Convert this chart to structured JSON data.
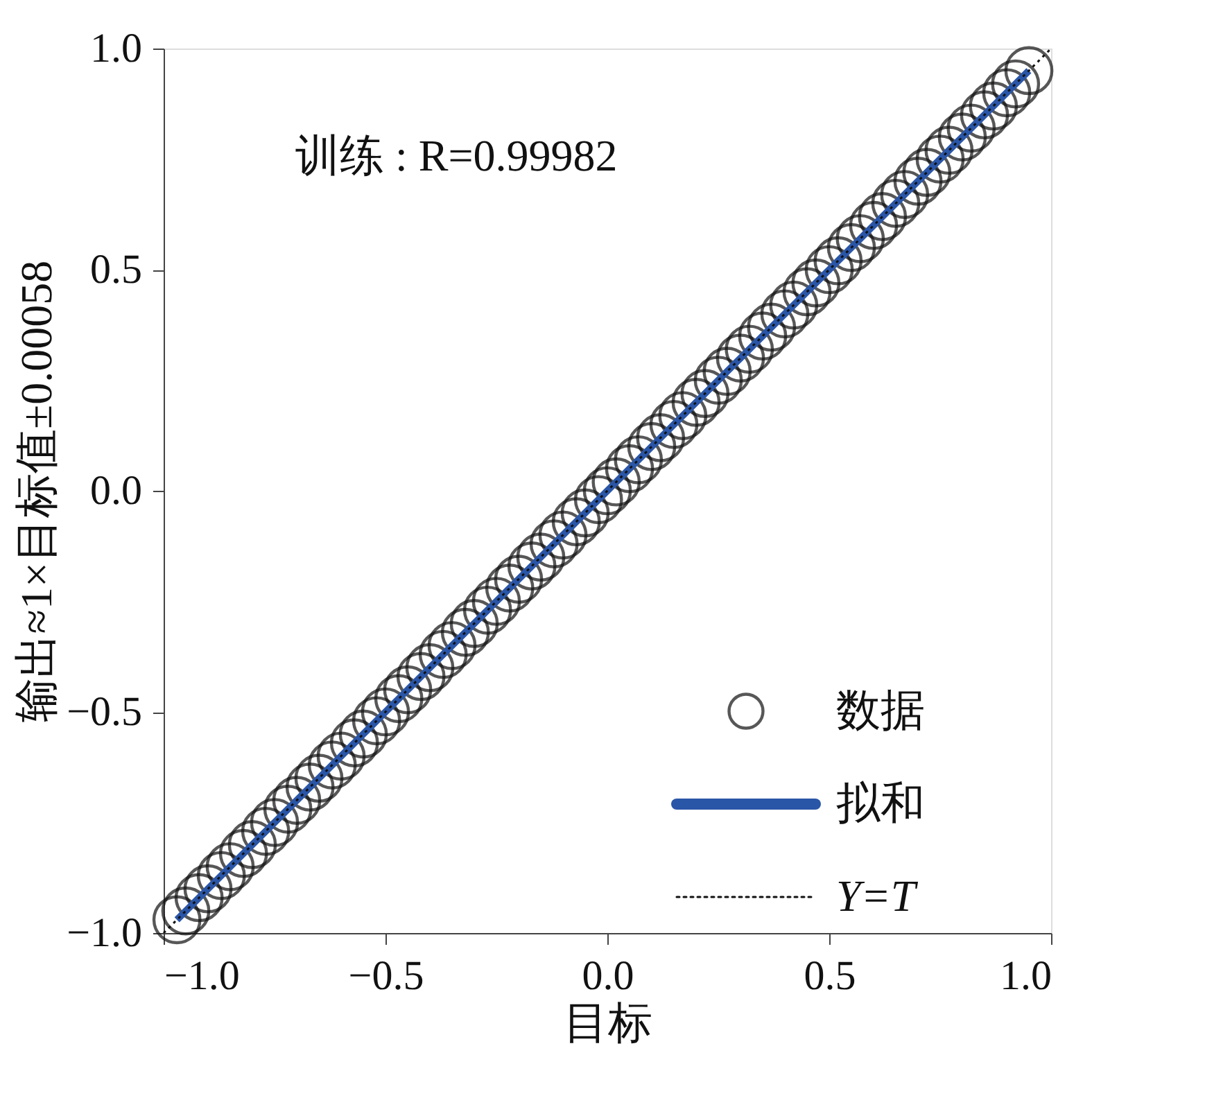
{
  "chart_data": {
    "type": "scatter",
    "xlabel": "目标",
    "ylabel": "输出≈1×目标值±0.00058",
    "annotations": [
      "训练 : R=0.99982"
    ],
    "xlim": [
      -1,
      1
    ],
    "ylim": [
      -1,
      1
    ],
    "xticks": [
      {
        "value": -1,
        "label": "−1.0"
      },
      {
        "value": -0.5,
        "label": "−0.5"
      },
      {
        "value": 0,
        "label": "0.0"
      },
      {
        "value": 0.5,
        "label": "0.5"
      },
      {
        "value": 1,
        "label": "1.0"
      }
    ],
    "yticks": [
      {
        "value": -1,
        "label": "−1.0"
      },
      {
        "value": -0.5,
        "label": "−0.5"
      },
      {
        "value": 0,
        "label": "0.0"
      },
      {
        "value": 0.5,
        "label": "0.5"
      },
      {
        "value": 1,
        "label": "1.0"
      }
    ],
    "grid": false,
    "legend": "bottom right",
    "series": [
      {
        "name": "数据",
        "marker": "circle",
        "color": "#111111",
        "x": [
          -0.97,
          -0.95,
          -0.92,
          -0.9,
          -0.87,
          -0.85,
          -0.82,
          -0.8,
          -0.77,
          -0.75,
          -0.72,
          -0.7,
          -0.67,
          -0.65,
          -0.62,
          -0.6,
          -0.57,
          -0.55,
          -0.52,
          -0.5,
          -0.47,
          -0.45,
          -0.42,
          -0.4,
          -0.37,
          -0.35,
          -0.32,
          -0.3,
          -0.27,
          -0.25,
          -0.22,
          -0.2,
          -0.17,
          -0.15,
          -0.12,
          -0.1,
          -0.07,
          -0.05,
          -0.02,
          0.0,
          0.02,
          0.05,
          0.07,
          0.1,
          0.12,
          0.15,
          0.17,
          0.2,
          0.22,
          0.25,
          0.27,
          0.3,
          0.32,
          0.35,
          0.37,
          0.4,
          0.42,
          0.45,
          0.47,
          0.5,
          0.52,
          0.55,
          0.57,
          0.6,
          0.62,
          0.65,
          0.67,
          0.7,
          0.72,
          0.75,
          0.77,
          0.8,
          0.82,
          0.85,
          0.87,
          0.9,
          0.92,
          0.95
        ],
        "values": [
          -0.97,
          -0.95,
          -0.92,
          -0.9,
          -0.87,
          -0.85,
          -0.82,
          -0.8,
          -0.77,
          -0.75,
          -0.72,
          -0.7,
          -0.67,
          -0.65,
          -0.62,
          -0.6,
          -0.57,
          -0.55,
          -0.52,
          -0.5,
          -0.47,
          -0.45,
          -0.42,
          -0.4,
          -0.37,
          -0.35,
          -0.32,
          -0.3,
          -0.27,
          -0.25,
          -0.22,
          -0.2,
          -0.17,
          -0.15,
          -0.12,
          -0.1,
          -0.07,
          -0.05,
          -0.02,
          0.0,
          0.02,
          0.05,
          0.07,
          0.1,
          0.12,
          0.15,
          0.17,
          0.2,
          0.22,
          0.25,
          0.27,
          0.3,
          0.32,
          0.35,
          0.37,
          0.4,
          0.42,
          0.45,
          0.47,
          0.5,
          0.52,
          0.55,
          0.57,
          0.6,
          0.62,
          0.65,
          0.67,
          0.7,
          0.72,
          0.75,
          0.77,
          0.8,
          0.82,
          0.85,
          0.87,
          0.9,
          0.92,
          0.95
        ]
      },
      {
        "name": "拟和",
        "type": "line",
        "line_style": "solid",
        "color": "#2a56a8",
        "x": [
          -0.97,
          0.95
        ],
        "values": [
          -0.97,
          0.95
        ]
      },
      {
        "name": "Y=T",
        "type": "line",
        "line_style": "dotted",
        "color": "#111111",
        "x": [
          -1,
          1
        ],
        "values": [
          -1,
          1
        ]
      }
    ]
  }
}
